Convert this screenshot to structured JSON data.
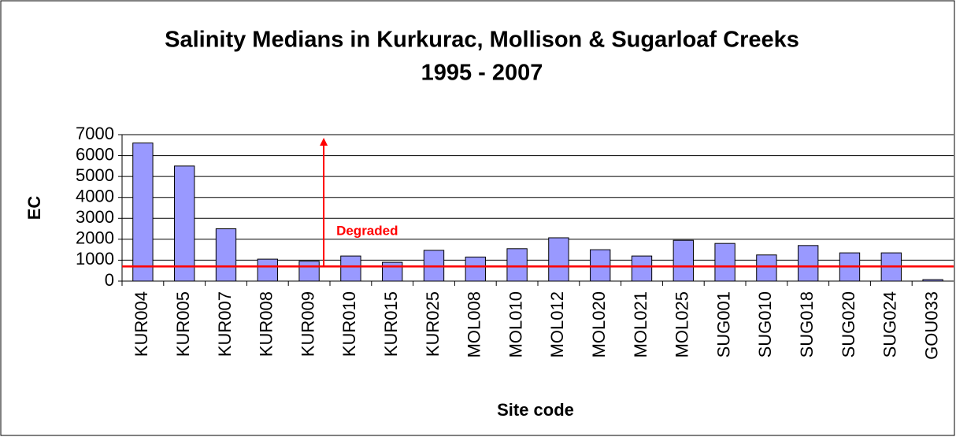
{
  "chart_data": {
    "type": "bar",
    "title": "Salinity Medians in Kurkurac, Mollison & Sugarloaf Creeks",
    "subtitle": "1995 - 2007",
    "x_label": "Site code",
    "y_label": "EC",
    "categories": [
      "KUR004",
      "KUR005",
      "KUR007",
      "KUR008",
      "KUR009",
      "KUR010",
      "KUR015",
      "KUR025",
      "MOL008",
      "MOL010",
      "MOL012",
      "MOL020",
      "MOL021",
      "MOL025",
      "SUG001",
      "SUG010",
      "SUG018",
      "SUG020",
      "SUG024",
      "GOU033"
    ],
    "values": [
      6600,
      5500,
      2500,
      1050,
      950,
      1200,
      900,
      1470,
      1150,
      1550,
      2070,
      1500,
      1200,
      1950,
      1800,
      1250,
      1700,
      1350,
      1350,
      70
    ],
    "color": "#9999ff",
    "ylim": [
      0,
      7000
    ],
    "yticks": [
      0,
      1000,
      2000,
      3000,
      4000,
      5000,
      6000,
      7000
    ],
    "grid": true,
    "threshold": 700,
    "threshold_color": "#ff0000",
    "annotation": "Degraded"
  }
}
